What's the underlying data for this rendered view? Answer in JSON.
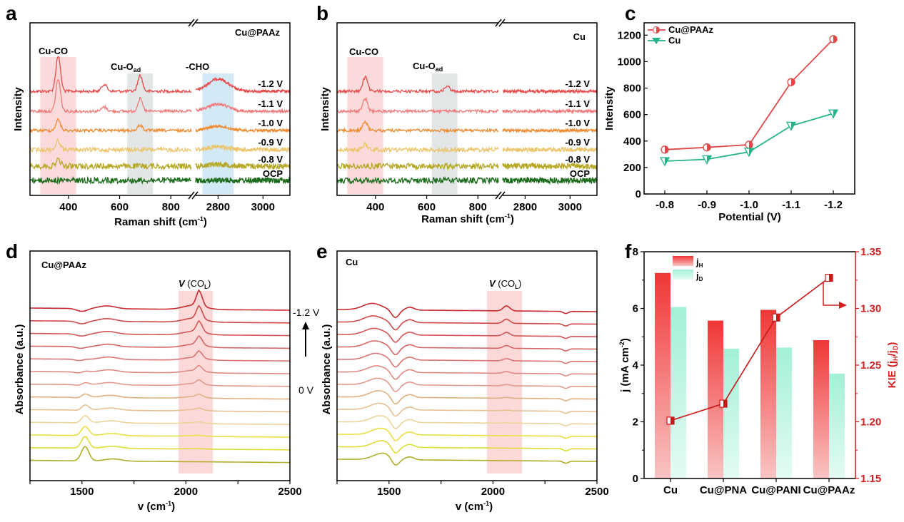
{
  "panels": {
    "a": {
      "label": "a",
      "sample": "Cu@PAAz"
    },
    "b": {
      "label": "b",
      "sample": "Cu"
    },
    "c": {
      "label": "c"
    },
    "d": {
      "label": "d",
      "sample": "Cu@PAAz"
    },
    "e": {
      "label": "e",
      "sample": "Cu"
    },
    "f": {
      "label": "f"
    }
  },
  "chart_data": [
    {
      "id": "a",
      "type": "line",
      "title": "Cu@PAAz",
      "xlabel": "Raman shift (cm⁻¹)",
      "ylabel": "Intensity",
      "axis_break": [
        880,
        2700
      ],
      "xlim_segments": [
        [
          250,
          880
        ],
        [
          2700,
          3120
        ]
      ],
      "xticks": [
        400,
        600,
        800,
        2800,
        3000
      ],
      "bands": [
        {
          "label": "Cu-CO",
          "range": [
            290,
            430
          ],
          "color": "#f9d3d3"
        },
        {
          "label": "Cu-O_ad",
          "range": [
            630,
            730
          ],
          "color": "#dde2e2"
        },
        {
          "label": "-CHO",
          "range": [
            2730,
            2870
          ],
          "color": "#cde5f5"
        }
      ],
      "series": [
        {
          "name": "-1.2 V",
          "color": "#e84a4a",
          "peaks": {
            "360": 1.0,
            "540": 0.2,
            "680": 0.45,
            "2800": 0.35
          }
        },
        {
          "name": "-1.1 V",
          "color": "#f07a7a",
          "peaks": {
            "360": 0.9,
            "540": 0.12,
            "680": 0.35,
            "2800": 0.2
          }
        },
        {
          "name": "-1.0 V",
          "color": "#ef8a2e",
          "peaks": {
            "360": 0.3,
            "680": 0.15,
            "2800": 0.12
          }
        },
        {
          "name": "-0.9 V",
          "color": "#ecc46a",
          "peaks": {
            "360": 0.25,
            "2800": 0.08
          }
        },
        {
          "name": "-0.8 V",
          "color": "#b5a824",
          "peaks": {
            "360": 0.18,
            "2800": 0.06
          }
        },
        {
          "name": "OCP",
          "color": "#1a6b1a",
          "peaks": {}
        }
      ]
    },
    {
      "id": "b",
      "type": "line",
      "title": "Cu",
      "xlabel": "Raman shift (cm⁻¹)",
      "ylabel": "Intensity",
      "axis_break": [
        880,
        2700
      ],
      "xlim_segments": [
        [
          250,
          880
        ],
        [
          2700,
          3120
        ]
      ],
      "xticks": [
        400,
        600,
        800,
        2800,
        3000
      ],
      "bands": [
        {
          "label": "Cu-CO",
          "range": [
            290,
            430
          ],
          "color": "#f9d3d3"
        },
        {
          "label": "Cu-O_ad",
          "range": [
            620,
            720
          ],
          "color": "#dde2e2"
        }
      ],
      "series": [
        {
          "name": "-1.2 V",
          "color": "#e84a4a",
          "peaks": {
            "360": 0.4,
            "680": 0.15
          }
        },
        {
          "name": "-1.1 V",
          "color": "#f07a7a",
          "peaks": {
            "360": 0.35
          }
        },
        {
          "name": "-1.0 V",
          "color": "#ef8a2e",
          "peaks": {
            "360": 0.25
          }
        },
        {
          "name": "-0.9 V",
          "color": "#ecc46a",
          "peaks": {
            "360": 0.15
          }
        },
        {
          "name": "-0.8 V",
          "color": "#b5a824",
          "peaks": {}
        },
        {
          "name": "OCP",
          "color": "#1a6b1a",
          "peaks": {}
        }
      ]
    },
    {
      "id": "c",
      "type": "line",
      "xlabel": "Potential (V)",
      "ylabel": "Intensity",
      "categories": [
        "-0.8",
        "-0.9",
        "-1.0",
        "-1.1",
        "-1.2"
      ],
      "ylim": [
        0,
        1250
      ],
      "yticks": [
        0,
        200,
        400,
        600,
        800,
        1000,
        1200
      ],
      "legend": "top-left",
      "series": [
        {
          "name": "Cu@PAAz",
          "color": "#e04848",
          "marker": "half-circle",
          "values": [
            335,
            352,
            372,
            845,
            1170
          ]
        },
        {
          "name": "Cu",
          "color": "#22b38a",
          "marker": "triangle-down",
          "values": [
            248,
            262,
            318,
            515,
            608
          ]
        }
      ]
    },
    {
      "id": "d",
      "type": "line",
      "title": "Cu@PAAz",
      "xlabel": "v (cm⁻¹)",
      "ylabel": "Absorbance (a.u.)",
      "xlim": [
        1250,
        2500
      ],
      "xticks": [
        1500,
        2000,
        2500
      ],
      "band": {
        "label": "V (CO_L)",
        "range": [
          1965,
          2130
        ],
        "color": "#fbd9d9"
      },
      "potential_arrow": {
        "top": "-1.2 V",
        "bottom": "0 V"
      },
      "n_spectra": 13,
      "features": {
        "co_peak_cm": 2065,
        "peak_1500_cm": 1515
      }
    },
    {
      "id": "e",
      "type": "line",
      "title": "Cu",
      "xlabel": "v (cm⁻¹)",
      "ylabel": "Absorbance (a.u.)",
      "xlim": [
        1250,
        2500
      ],
      "xticks": [
        1500,
        2000,
        2500
      ],
      "band": {
        "label": "V (CO_L)",
        "range": [
          1975,
          2140
        ],
        "color": "#fbd9d9"
      },
      "n_spectra": 13,
      "features": {
        "co_peak_cm": 2065,
        "dip_cm": 1530
      }
    },
    {
      "id": "f",
      "type": "bar",
      "categories": [
        "Cu",
        "Cu@PNA",
        "Cu@PANI",
        "Cu@PAAz"
      ],
      "ylabel": "j (mA cm⁻²)",
      "y2label": "KIE (j_H/j_D)",
      "ylim": [
        0,
        8
      ],
      "yticks": [
        0,
        2,
        4,
        6,
        8
      ],
      "y2lim": [
        1.15,
        1.35
      ],
      "y2ticks": [
        "1.15",
        "1.20",
        "1.25",
        "1.30",
        "1.35"
      ],
      "legend": "top-left",
      "series": [
        {
          "name": "j_H",
          "color": "#f03b3b",
          "values": [
            7.25,
            5.57,
            5.95,
            4.88
          ]
        },
        {
          "name": "j_D",
          "color": "#a8f2dc",
          "values": [
            6.05,
            4.58,
            4.62,
            3.7
          ]
        }
      ],
      "line_series": {
        "name": "KIE",
        "axis": "right",
        "color": "#c81818",
        "values": [
          1.201,
          1.216,
          1.292,
          1.327
        ]
      }
    }
  ],
  "text": {
    "a_band1": "Cu-CO",
    "a_band2": "Cu-O",
    "a_band2_sub": "ad",
    "a_band3": "-CHO",
    "b_band1": "Cu-CO",
    "b_band2": "Cu-O",
    "b_band2_sub": "ad",
    "raman_xlabel": "Raman shift (cm",
    "raman_xlabel_sup": "-1",
    "raman_xlabel_end": ")",
    "intensity": "Intensity",
    "ir_xlabel": "v (cm",
    "ir_xlabel_sup": "-1",
    "ir_xlabel_end": ")",
    "absorbance": "Absorbance (a.u.)",
    "col_label_v": "V",
    "col_label": " (CO",
    "col_label_sub": "L",
    "col_label_end": ")",
    "d_top": "-1.2 V",
    "d_bottom": "0 V",
    "c_xlabel": "Potential (V)",
    "f_ylabel": "j (mA cm",
    "f_ylabel_sup": "-2",
    "f_ylabel_end": ")",
    "f_y2label": "KIE (j",
    "f_y2_sub1": "H",
    "f_y2_mid": "/j",
    "f_y2_sub2": "D",
    "f_y2_end": ")",
    "leg_jh": "j",
    "leg_jh_sub": "H",
    "leg_jd": "j",
    "leg_jd_sub": "D"
  }
}
